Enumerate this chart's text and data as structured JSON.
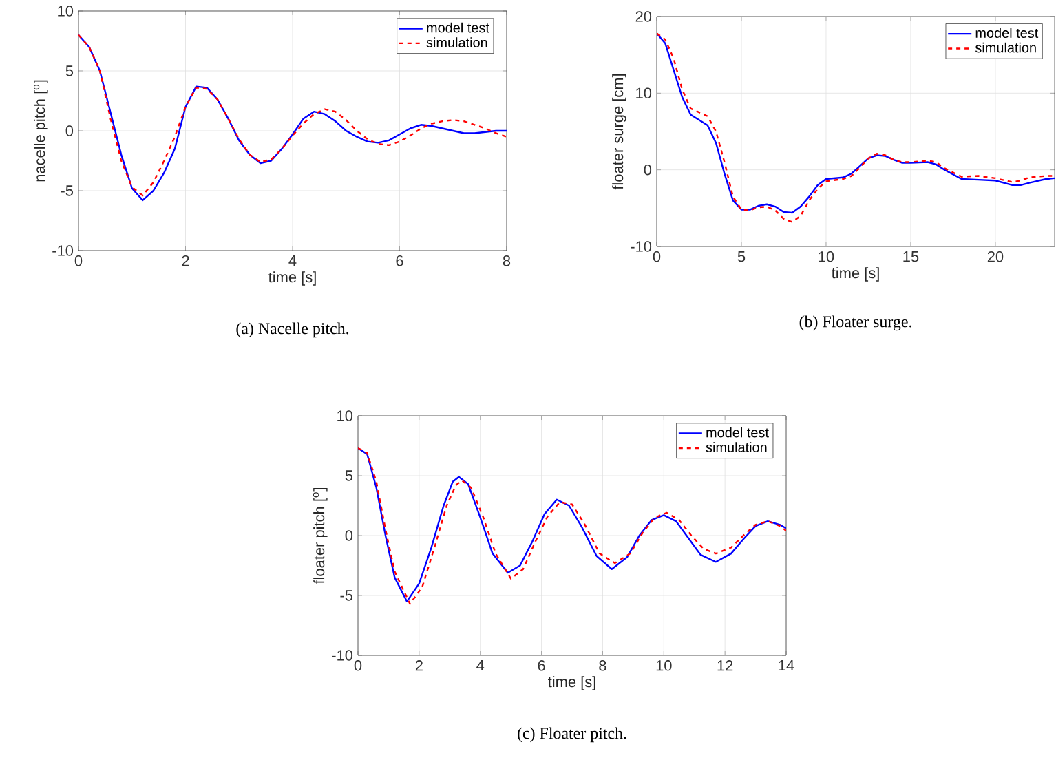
{
  "chart_data": [
    {
      "type": "line",
      "xlabel": "time [s]",
      "ylabel": "nacelle pitch [$^{o}$]",
      "annotations": [
        "(a) Nacelle pitch."
      ],
      "xlim": [
        0,
        8
      ],
      "ylim": [
        -10,
        10
      ],
      "xticks": [
        0,
        2,
        4,
        6,
        8
      ],
      "yticks": [
        -10,
        -5,
        0,
        5,
        10
      ],
      "grid": true,
      "legend": "top right",
      "series": [
        {
          "name": "model test",
          "color": "#0000ff",
          "line_style": "solid",
          "x": [
            0,
            0.2,
            0.4,
            0.6,
            0.8,
            1.0,
            1.2,
            1.4,
            1.6,
            1.8,
            2.0,
            2.2,
            2.4,
            2.6,
            2.8,
            3.0,
            3.2,
            3.4,
            3.6,
            3.8,
            4.0,
            4.2,
            4.4,
            4.6,
            4.8,
            5.0,
            5.2,
            5.4,
            5.6,
            5.8,
            6.0,
            6.2,
            6.4,
            6.6,
            6.8,
            7.0,
            7.2,
            7.4,
            7.6,
            7.8,
            8
          ],
          "values": [
            8,
            7,
            5,
            1.5,
            -2,
            -4.8,
            -5.8,
            -5,
            -3.5,
            -1.5,
            2,
            3.7,
            3.6,
            2.6,
            1,
            -0.8,
            -2,
            -2.7,
            -2.5,
            -1.5,
            -0.3,
            1,
            1.6,
            1.4,
            0.8,
            0,
            -0.5,
            -0.9,
            -1.0,
            -0.8,
            -0.3,
            0.2,
            0.5,
            0.4,
            0.2,
            0,
            -0.2,
            -0.2,
            -0.1,
            0,
            0
          ]
        },
        {
          "name": "simulation",
          "color": "#ff0000",
          "line_style": "dashed",
          "x": [
            0,
            0.2,
            0.4,
            0.6,
            0.8,
            1.0,
            1.2,
            1.4,
            1.6,
            1.8,
            2.0,
            2.2,
            2.4,
            2.6,
            2.8,
            3.0,
            3.2,
            3.4,
            3.6,
            3.8,
            4.0,
            4.2,
            4.4,
            4.6,
            4.8,
            5.0,
            5.2,
            5.4,
            5.6,
            5.8,
            6.0,
            6.2,
            6.4,
            6.6,
            6.8,
            7.0,
            7.2,
            7.4,
            7.6,
            7.8,
            8
          ],
          "values": [
            8,
            7,
            5,
            1,
            -2.5,
            -4.7,
            -5.4,
            -4.3,
            -2.5,
            -0.5,
            2,
            3.6,
            3.5,
            2.6,
            1,
            -0.7,
            -2,
            -2.6,
            -2.4,
            -1.5,
            -0.4,
            0.6,
            1.4,
            1.8,
            1.6,
            0.9,
            0,
            -0.7,
            -1.1,
            -1.2,
            -0.9,
            -0.4,
            0.2,
            0.6,
            0.8,
            0.9,
            0.8,
            0.5,
            0.2,
            -0.2,
            -0.5
          ]
        }
      ]
    },
    {
      "type": "line",
      "xlabel": "time [s]",
      "ylabel": "floater surge [cm]",
      "annotations": [
        "(b) Floater surge."
      ],
      "xlim": [
        0,
        23.5
      ],
      "ylim": [
        -10,
        20
      ],
      "xticks": [
        0,
        5,
        10,
        15,
        20
      ],
      "yticks": [
        -10,
        0,
        10,
        20
      ],
      "grid": true,
      "legend": "top right",
      "series": [
        {
          "name": "model test",
          "color": "#0000ff",
          "line_style": "solid",
          "x": [
            0,
            0.5,
            1,
            1.5,
            2,
            2.5,
            3,
            3.5,
            4,
            4.5,
            5,
            5.5,
            6,
            6.5,
            7,
            7.5,
            8,
            8.5,
            9,
            9.5,
            10,
            11,
            11.5,
            12,
            12.5,
            13,
            13.5,
            14,
            14.5,
            15,
            16,
            16.5,
            17,
            18,
            19,
            20,
            21,
            21.5,
            22,
            23,
            23.5
          ],
          "values": [
            17.8,
            16.5,
            13,
            9.5,
            7.2,
            6.5,
            5.8,
            3.5,
            -0.5,
            -4,
            -5.2,
            -5.2,
            -4.7,
            -4.5,
            -4.8,
            -5.5,
            -5.6,
            -4.8,
            -3.5,
            -2,
            -1.2,
            -1,
            -0.5,
            0.5,
            1.5,
            1.9,
            1.8,
            1.3,
            0.9,
            0.9,
            1,
            0.7,
            0,
            -1.2,
            -1.3,
            -1.4,
            -2,
            -2,
            -1.7,
            -1.2,
            -1.1
          ]
        },
        {
          "name": "simulation",
          "color": "#ff0000",
          "line_style": "dashed",
          "x": [
            0,
            0.5,
            1,
            1.5,
            2,
            2.5,
            3,
            3.5,
            4,
            4.5,
            5,
            5.5,
            6,
            6.5,
            7,
            7.5,
            8,
            8.5,
            9,
            9.5,
            10,
            11,
            11.5,
            12,
            12.5,
            13,
            13.5,
            14,
            14.5,
            15,
            16,
            16.5,
            17,
            18,
            19,
            20,
            21,
            21.5,
            22,
            23,
            23.5
          ],
          "values": [
            17.8,
            17,
            14.5,
            10.5,
            8,
            7.5,
            7,
            5,
            1,
            -3.5,
            -5.2,
            -5.3,
            -4.9,
            -4.8,
            -5.3,
            -6.4,
            -6.8,
            -6,
            -4,
            -2.5,
            -1.5,
            -1.2,
            -0.8,
            0.3,
            1.5,
            2.1,
            1.9,
            1.3,
            1,
            1,
            1.2,
            1,
            0.2,
            -0.9,
            -0.8,
            -1.1,
            -1.6,
            -1.4,
            -1,
            -0.8,
            -0.8
          ]
        }
      ]
    },
    {
      "type": "line",
      "xlabel": "time [s]",
      "ylabel": "floater pitch [$^{o}$]",
      "annotations": [
        "(c) Floater pitch."
      ],
      "xlim": [
        0,
        14
      ],
      "ylim": [
        -10,
        10
      ],
      "xticks": [
        0,
        2,
        4,
        6,
        8,
        10,
        12,
        14
      ],
      "yticks": [
        -10,
        -5,
        0,
        5,
        10
      ],
      "grid": true,
      "legend": "top right",
      "series": [
        {
          "name": "model test",
          "color": "#0000ff",
          "line_style": "solid",
          "x": [
            0,
            0.3,
            0.6,
            0.9,
            1.2,
            1.6,
            2.0,
            2.4,
            2.8,
            3.1,
            3.3,
            3.6,
            4.0,
            4.4,
            4.9,
            5.3,
            5.7,
            6.1,
            6.5,
            6.9,
            7.3,
            7.8,
            8.3,
            8.8,
            9.2,
            9.6,
            10.0,
            10.4,
            10.8,
            11.2,
            11.7,
            12.2,
            12.6,
            13.0,
            13.4,
            13.8,
            14
          ],
          "values": [
            7.3,
            6.8,
            4,
            0,
            -3.5,
            -5.5,
            -4,
            -1,
            2.5,
            4.5,
            4.9,
            4.3,
            1.5,
            -1.5,
            -3.1,
            -2.5,
            -0.5,
            1.8,
            3,
            2.5,
            0.8,
            -1.7,
            -2.8,
            -1.8,
            0,
            1.3,
            1.7,
            1.2,
            -0.2,
            -1.6,
            -2.2,
            -1.5,
            -0.3,
            0.8,
            1.2,
            0.9,
            0.6
          ]
        },
        {
          "name": "simulation",
          "color": "#ff0000",
          "line_style": "dashed",
          "x": [
            0,
            0.3,
            0.6,
            0.9,
            1.2,
            1.7,
            2.1,
            2.5,
            2.9,
            3.2,
            3.4,
            3.7,
            4.1,
            4.5,
            5.0,
            5.4,
            5.8,
            6.2,
            6.6,
            7.0,
            7.4,
            7.9,
            8.4,
            8.9,
            9.3,
            9.7,
            10.1,
            10.5,
            10.9,
            11.3,
            11.7,
            12.2,
            12.6,
            13.0,
            13.4,
            13.8,
            14
          ],
          "values": [
            7.3,
            6.9,
            4.5,
            0.5,
            -3,
            -5.7,
            -4.3,
            -1,
            2.5,
            4.2,
            4.6,
            4.0,
            1.5,
            -1.5,
            -3.6,
            -2.8,
            -0.5,
            1.6,
            2.8,
            2.6,
            1.0,
            -1.5,
            -2.3,
            -1.5,
            0.2,
            1.5,
            1.9,
            1.3,
            0,
            -1.1,
            -1.5,
            -1,
            0,
            0.9,
            1.2,
            0.8,
            0.4
          ]
        }
      ]
    }
  ]
}
